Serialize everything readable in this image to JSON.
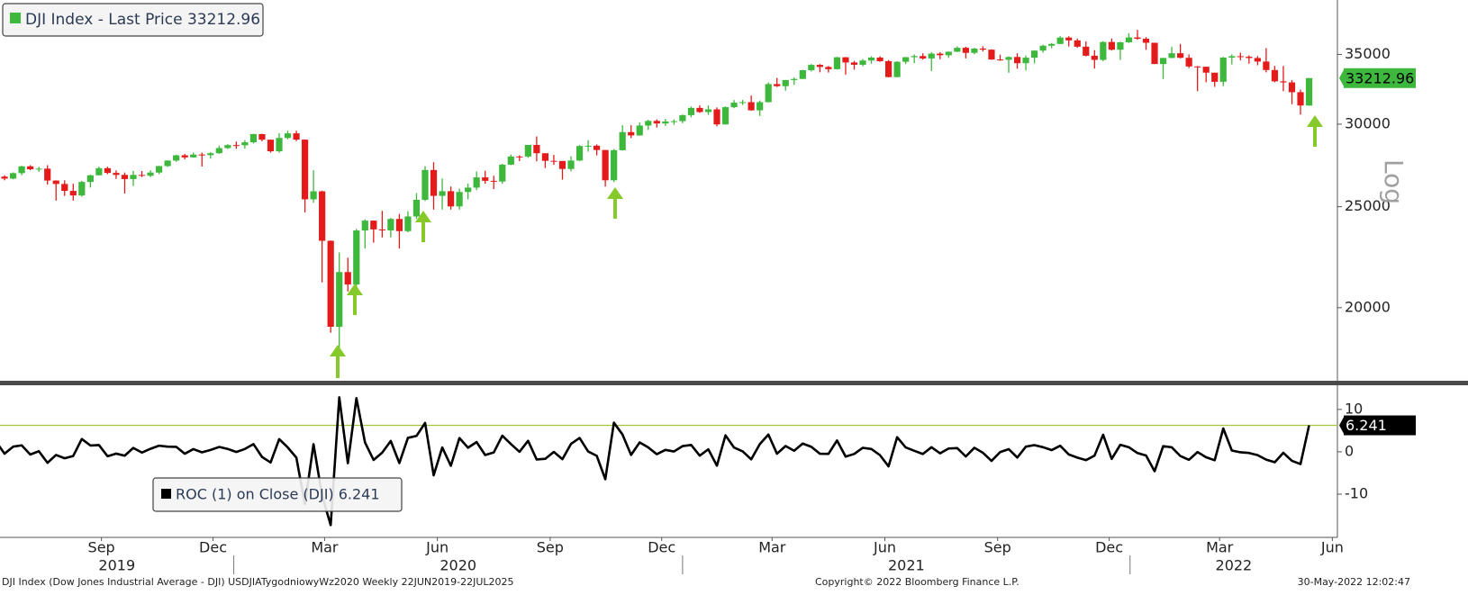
{
  "chart_data": [
    {
      "type": "candlestick",
      "legend": "DJI Index - Last Price 33212.96",
      "axis_label": "Log",
      "log_scale": true,
      "up_color": "#3db83d",
      "down_color": "#e31b1b",
      "xlim": [
        0.47,
        156.3
      ],
      "ylim": [
        16950,
        39470
      ],
      "yticks": [
        20000,
        25000,
        30000,
        35000
      ],
      "xticks": [
        {
          "value": 12.29,
          "label": "Sep"
        },
        {
          "value": 25.29,
          "label": "Dec"
        },
        {
          "value": 38.29,
          "label": "Mar"
        },
        {
          "value": 51.43,
          "label": "Jun"
        },
        {
          "value": 64.57,
          "label": "Sep"
        },
        {
          "value": 77.57,
          "label": "Dec"
        },
        {
          "value": 90.43,
          "label": "Mar"
        },
        {
          "value": 103.57,
          "label": "Jun"
        },
        {
          "value": 116.71,
          "label": "Sep"
        },
        {
          "value": 129.71,
          "label": "Dec"
        },
        {
          "value": 142.57,
          "label": "Mar"
        },
        {
          "value": 155.71,
          "label": "Jun"
        }
      ],
      "year_ticks": [
        {
          "value": -24.43,
          "label": "2019"
        },
        {
          "value": 27.71,
          "label": "2020"
        },
        {
          "value": 80,
          "label": "2021"
        },
        {
          "value": 132.14,
          "label": "2022"
        }
      ],
      "open": [
        26090,
        26719,
        26600,
        26922,
        27332,
        27154,
        27192,
        26485,
        26287,
        25886,
        25629,
        26403,
        26797,
        27220,
        26935,
        26820,
        26573,
        26817,
        26770,
        26958,
        27347,
        27681,
        28005,
        27876,
        28051,
        28015,
        28135,
        28455,
        28645,
        28634,
        28823,
        29348,
        28989,
        28256,
        29102,
        29398,
        28992,
        25409,
        25864,
        23186,
        19174,
        21637,
        21053,
        23719,
        24242,
        23775,
        23724,
        24331,
        23685,
        24465,
        25383,
        27111,
        25606,
        25871,
        25016,
        25827,
        26075,
        26672,
        26470,
        26428,
        27433,
        27931,
        27930,
        28654,
        28133,
        27666,
        27657,
        27174,
        27683,
        28586,
        28606,
        28335,
        26502,
        28323,
        29479,
        29263,
        29910,
        30218,
        30046,
        30179,
        30200,
        30606,
        31098,
        30814,
        30997,
        29983,
        31148,
        31458,
        31494,
        30932,
        31496,
        32779,
        32628,
        33073,
        33153,
        33801,
        34200,
        34043,
        33875,
        34778,
        34382,
        34208,
        34529,
        34756,
        34480,
        33290,
        34433,
        34786,
        34870,
        34687,
        35061,
        34935,
        35209,
        35515,
        35120,
        35455,
        35369,
        34607,
        34584,
        34798,
        34326,
        34746,
        35295,
        35677,
        35820,
        36328,
        36100,
        35602,
        34899,
        34580,
        35971,
        35365,
        35950,
        36338,
        36232,
        35912,
        34265,
        34725,
        35090,
        34738,
        34079,
        34059,
        33615,
        32944,
        34755,
        34861,
        34818,
        34721,
        34451,
        33811,
        32977,
        32899,
        32197,
        31262
      ],
      "high": [
        26910,
        26800,
        26970,
        27360,
        27400,
        27300,
        27400,
        26500,
        26500,
        26300,
        26470,
        26830,
        27310,
        27310,
        27090,
        26960,
        27060,
        27050,
        27090,
        27360,
        27700,
        28040,
        28090,
        28170,
        28170,
        28200,
        28610,
        28700,
        28870,
        28960,
        29370,
        29370,
        28990,
        29410,
        29570,
        29570,
        29000,
        27100,
        25900,
        23200,
        22600,
        22330,
        23800,
        24310,
        24250,
        24770,
        24390,
        24600,
        24750,
        25760,
        27340,
        27580,
        26610,
        26140,
        26020,
        26300,
        27020,
        27070,
        26770,
        27480,
        28050,
        28000,
        28660,
        29200,
        28130,
        28030,
        27660,
        27950,
        28640,
        28960,
        28690,
        28340,
        28400,
        29930,
        29930,
        30120,
        30290,
        30320,
        30350,
        30310,
        30640,
        31190,
        31270,
        31270,
        31130,
        31200,
        31640,
        31650,
        31960,
        31610,
        32900,
        33230,
        33080,
        33260,
        33830,
        34260,
        34260,
        34120,
        34810,
        34800,
        34500,
        34640,
        34850,
        34850,
        34570,
        34480,
        34800,
        35000,
        35090,
        35170,
        35170,
        35220,
        35630,
        35590,
        35510,
        35630,
        35390,
        34980,
        34840,
        35090,
        34910,
        35320,
        35760,
        35890,
        36440,
        36430,
        36250,
        36030,
        35330,
        36040,
        36250,
        35990,
        36680,
        36950,
        36360,
        35870,
        34730,
        35580,
        35820,
        35000,
        34110,
        34050,
        33600,
        34800,
        35000,
        35130,
        34930,
        34870,
        35490,
        34120,
        34120,
        33070,
        32380,
        33220
      ],
      "low": [
        26030,
        26500,
        26560,
        26800,
        27100,
        27000,
        26250,
        25340,
        25600,
        25340,
        25560,
        26080,
        26780,
        26860,
        26580,
        25740,
        26170,
        26690,
        26690,
        26860,
        27300,
        27610,
        27760,
        27860,
        27320,
        27800,
        28100,
        28400,
        28410,
        28420,
        28750,
        28880,
        28170,
        28170,
        29010,
        28900,
        24680,
        25220,
        21150,
        18920,
        18210,
        20730,
        20740,
        22790,
        23090,
        23360,
        23360,
        22790,
        23620,
        24330,
        25310,
        24840,
        24840,
        24840,
        24840,
        25410,
        25930,
        26300,
        25990,
        26300,
        27400,
        27650,
        27860,
        27640,
        27230,
        27420,
        26540,
        27030,
        27650,
        28230,
        28000,
        26140,
        26400,
        28300,
        29090,
        29240,
        29620,
        29780,
        29890,
        29960,
        30070,
        30460,
        30760,
        30620,
        29860,
        29970,
        31080,
        31300,
        30900,
        30550,
        31480,
        32570,
        32300,
        32720,
        33150,
        33700,
        33640,
        33620,
        33850,
        33470,
        33840,
        34100,
        34290,
        34430,
        33270,
        33270,
        34260,
        34330,
        34600,
        33740,
        34630,
        34730,
        35180,
        34690,
        35010,
        35230,
        34580,
        34510,
        33610,
        33910,
        33780,
        34310,
        35130,
        35480,
        35800,
        35620,
        35520,
        34850,
        33920,
        34480,
        35300,
        34570,
        35900,
        36150,
        35360,
        34260,
        33150,
        34710,
        34700,
        33960,
        32270,
        32910,
        32580,
        32630,
        34230,
        34550,
        34290,
        34170,
        33640,
        32910,
        32270,
        31350,
        30640,
        31250
      ],
      "close": [
        26719,
        26600,
        26922,
        27332,
        27154,
        27192,
        26485,
        26287,
        25886,
        25629,
        26403,
        26797,
        27220,
        26935,
        26820,
        26573,
        26817,
        26770,
        26958,
        27347,
        27681,
        28005,
        27876,
        28051,
        28015,
        28135,
        28455,
        28645,
        28634,
        28823,
        29348,
        28989,
        28256,
        29102,
        29398,
        28992,
        25409,
        25864,
        23186,
        19174,
        21637,
        21053,
        23719,
        24242,
        23775,
        23724,
        24331,
        23685,
        24465,
        25383,
        27111,
        25606,
        25871,
        25016,
        25827,
        26075,
        26672,
        26470,
        26428,
        27433,
        27931,
        27930,
        28654,
        28133,
        27666,
        27657,
        27174,
        27683,
        28586,
        28606,
        28335,
        26502,
        28323,
        29479,
        29263,
        29910,
        30218,
        30046,
        30179,
        30200,
        30606,
        31098,
        30814,
        30997,
        29983,
        31148,
        31458,
        31494,
        30932,
        31496,
        32779,
        32628,
        33073,
        33153,
        33801,
        34200,
        34043,
        33875,
        34778,
        34382,
        34208,
        34529,
        34756,
        34480,
        33290,
        34433,
        34786,
        34870,
        34687,
        35061,
        34935,
        35209,
        35515,
        35120,
        35455,
        35369,
        34607,
        34584,
        34798,
        34326,
        34746,
        35295,
        35677,
        35820,
        36328,
        36100,
        35602,
        34899,
        34580,
        35971,
        35365,
        35950,
        36338,
        36232,
        35912,
        34265,
        34725,
        35090,
        34738,
        34079,
        34059,
        33615,
        32944,
        34755,
        34861,
        34818,
        34721,
        34451,
        33811,
        32977,
        32899,
        32197,
        31262,
        33212.96
      ]
    },
    {
      "type": "line",
      "legend": "ROC (1)  on Close (DJI) 6.241",
      "color": "#000000",
      "reference_color": "#a3c63c",
      "xlim": [
        0.47,
        156.3
      ],
      "ylim": [
        -20.2,
        15.7
      ],
      "yticks": [
        10,
        0,
        -10
      ],
      "values": [
        2.4,
        -0.45,
        1.21,
        1.52,
        -0.65,
        0.14,
        -2.6,
        -0.75,
        -1.53,
        -0.99,
        3.02,
        1.49,
        1.58,
        -1.05,
        -0.43,
        -0.92,
        0.92,
        -0.18,
        0.7,
        1.44,
        1.22,
        1.17,
        -0.46,
        0.63,
        -0.13,
        0.43,
        1.14,
        0.67,
        -0.04,
        0.66,
        1.82,
        -1.22,
        -2.53,
        2.99,
        1.02,
        -1.38,
        -12.36,
        1.79,
        -10.35,
        -17.3,
        12.85,
        -2.7,
        12.66,
        2.2,
        -1.93,
        -0.21,
        2.56,
        -2.66,
        3.29,
        3.75,
        6.81,
        -5.55,
        1.03,
        -3.3,
        3.24,
        0.96,
        2.29,
        -0.76,
        -0.16,
        3.8,
        1.82,
        0,
        2.59,
        -1.82,
        -1.66,
        -0.03,
        -1.75,
        1.87,
        3.26,
        0.07,
        -0.95,
        -6.47,
        6.87,
        4.08,
        -0.73,
        2.21,
        1.03,
        -0.57,
        0.44,
        0.07,
        1.34,
        1.61,
        -0.91,
        0.59,
        -3.27,
        3.89,
        1,
        0.11,
        -1.78,
        1.82,
        4.07,
        -0.46,
        1.36,
        0.24,
        1.95,
        1.18,
        -0.46,
        -0.49,
        2.67,
        -1.14,
        -0.51,
        0.94,
        0.66,
        -0.79,
        -3.45,
        3.43,
        1.03,
        0.24,
        -0.52,
        1.08,
        -0.36,
        0.78,
        0.87,
        -1.11,
        0.95,
        -0.24,
        -2.15,
        -0.07,
        0.62,
        -1.36,
        1.22,
        1.58,
        1.08,
        0.4,
        1.42,
        -0.63,
        -1.38,
        -1.97,
        -0.91,
        4.02,
        -1.68,
        1.65,
        1.08,
        -0.29,
        -0.88,
        -4.59,
        1.34,
        1.05,
        -1,
        -1.9,
        -0.06,
        -1.3,
        -2,
        5.5,
        0.3,
        -0.12,
        -0.28,
        -0.78,
        -1.86,
        -2.47,
        -0.24,
        -2.13,
        -2.9,
        6.241
      ]
    }
  ],
  "footer": {
    "left": "DJI Index (Dow Jones Industrial Average - DJI) USDJIATygodniowyWz2020  Weekly 22JUN2019-22JUL2025",
    "center": "Copyright© 2022 Bloomberg Finance L.P.",
    "right": "30-May-2022 12:02:47"
  }
}
